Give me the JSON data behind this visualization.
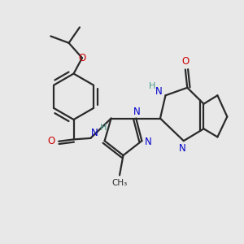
{
  "bg_color": "#e8e8e8",
  "bond_color": "#2a2a2a",
  "N_color": "#0000cc",
  "O_color": "#cc0000",
  "H_color": "#4a9a8a",
  "line_width": 1.6,
  "figsize": [
    3.0,
    3.0
  ],
  "dpi": 100,
  "xlim": [
    0,
    10
  ],
  "ylim": [
    0,
    10
  ]
}
